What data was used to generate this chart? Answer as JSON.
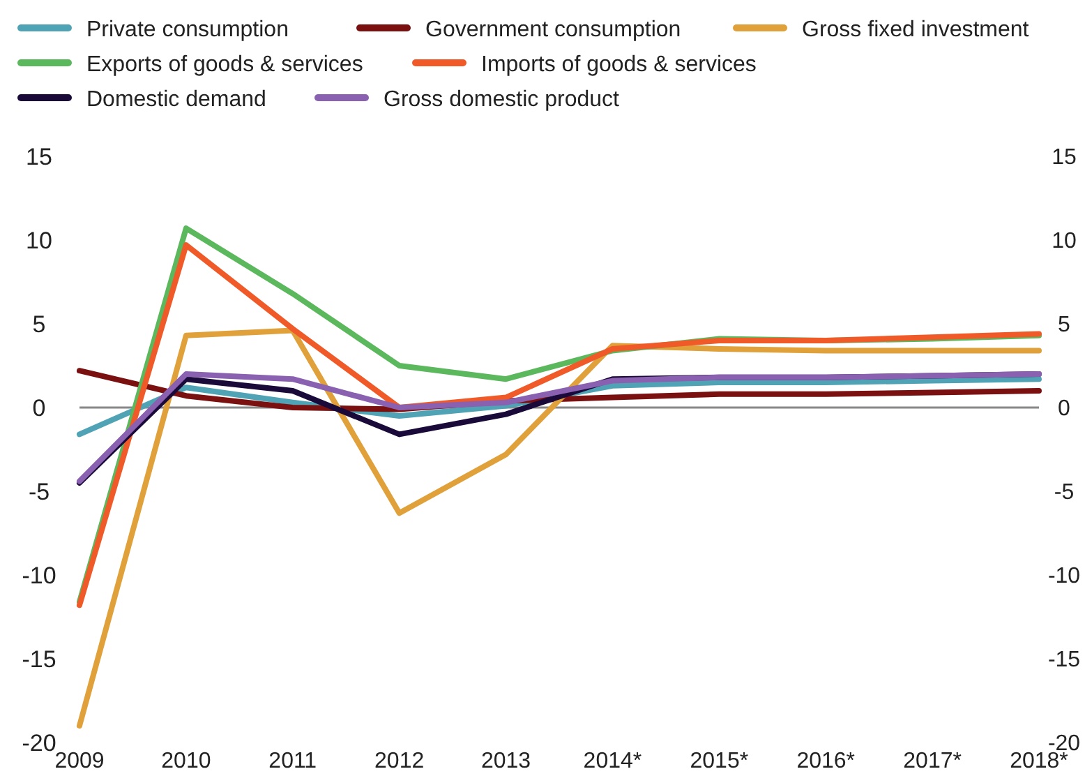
{
  "chart_data": {
    "type": "line",
    "categories": [
      "2009",
      "2010",
      "2011",
      "2012",
      "2013",
      "2014*",
      "2015*",
      "2016*",
      "2017*",
      "2018*"
    ],
    "series": [
      {
        "name": "Private consumption",
        "color": "#4fa3b5",
        "values": [
          -1.6,
          1.2,
          0.3,
          -0.5,
          0.1,
          1.3,
          1.5,
          1.5,
          1.6,
          1.7
        ]
      },
      {
        "name": "Government consumption",
        "color": "#7a1010",
        "values": [
          2.2,
          0.7,
          0,
          -0.1,
          0.4,
          0.6,
          0.8,
          0.8,
          0.9,
          1.0
        ]
      },
      {
        "name": "Gross fixed investment",
        "color": "#e0a03a",
        "values": [
          -19,
          4.3,
          4.6,
          -6.3,
          -2.8,
          3.7,
          3.5,
          3.4,
          3.4,
          3.4
        ]
      },
      {
        "name": "Exports of goods & services",
        "color": "#5cb85c",
        "values": [
          -11.6,
          10.7,
          6.8,
          2.5,
          1.7,
          3.4,
          4.1,
          4.0,
          4.1,
          4.3
        ]
      },
      {
        "name": "Imports of goods & services",
        "color": "#f05a28",
        "values": [
          -11.8,
          9.7,
          4.7,
          0,
          0.6,
          3.5,
          4.0,
          4.0,
          4.2,
          4.4
        ]
      },
      {
        "name": "Domestic demand",
        "color": "#1a0a3a",
        "values": [
          -4.5,
          1.7,
          1.0,
          -1.6,
          -0.4,
          1.7,
          1.8,
          1.8,
          1.9,
          2.0
        ]
      },
      {
        "name": "Gross domestic product",
        "color": "#8a60b0",
        "values": [
          -4.4,
          2.0,
          1.7,
          0,
          0.3,
          1.6,
          1.8,
          1.8,
          1.9,
          2.0
        ]
      }
    ],
    "ylim": [
      -20,
      15
    ],
    "yticks": [
      -20,
      -15,
      -10,
      -5,
      0,
      5,
      10,
      15
    ],
    "y2lim": [
      -20,
      15
    ],
    "y2ticks": [
      -20,
      -15,
      -10,
      -5,
      0,
      5,
      10,
      15
    ],
    "ref_lines": [
      {
        "axis": "y",
        "value": 0,
        "color": "#888888"
      }
    ],
    "grid": false,
    "legend": "top",
    "marker": "none",
    "line_style": "solid"
  }
}
